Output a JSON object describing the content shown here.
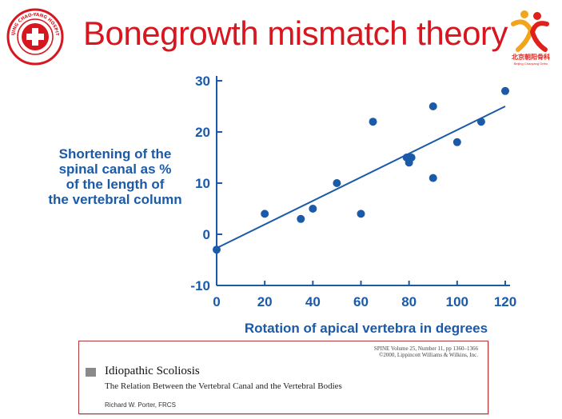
{
  "header": {
    "title": "Bonegrowth mismatch theory",
    "left_logo_text": "BEIJING CHAO-YANG HOSPITAL",
    "right_logo_text": "北京朝阳骨科",
    "right_logo_subtext": "Beijing Chaoyang Ortho"
  },
  "chart_data": {
    "type": "scatter",
    "title": "",
    "xlabel": "Rotation of apical vertebra in degrees",
    "ylabel_lines": [
      "Shortening of the",
      "spinal canal as %",
      "of the length of",
      "the vertebral column"
    ],
    "xlim": [
      0,
      120
    ],
    "ylim": [
      -10,
      30
    ],
    "xticks": [
      0,
      20,
      40,
      60,
      80,
      100,
      120
    ],
    "yticks": [
      -10,
      0,
      10,
      20,
      30
    ],
    "grid": false,
    "color": "#1a5aa8",
    "points": [
      {
        "x": 0,
        "y": -3
      },
      {
        "x": 20,
        "y": 4
      },
      {
        "x": 35,
        "y": 3
      },
      {
        "x": 40,
        "y": 5
      },
      {
        "x": 50,
        "y": 10
      },
      {
        "x": 60,
        "y": 4
      },
      {
        "x": 65,
        "y": 22
      },
      {
        "x": 79,
        "y": 15
      },
      {
        "x": 80,
        "y": 14
      },
      {
        "x": 81,
        "y": 15
      },
      {
        "x": 90,
        "y": 25
      },
      {
        "x": 90,
        "y": 11
      },
      {
        "x": 100,
        "y": 18
      },
      {
        "x": 110,
        "y": 22
      },
      {
        "x": 120,
        "y": 28
      }
    ],
    "trendline": {
      "x1": 0,
      "y1": -2.7,
      "x2": 120,
      "y2": 25
    }
  },
  "reference": {
    "journal_line1": "SPINE Volume 25, Number 11, pp 1360–1366",
    "journal_line2": "©2000, Lippincott Williams & Wilkins, Inc.",
    "title": "Idiopathic Scoliosis",
    "subtitle": "The Relation Between the Vertebral Canal and the Vertebral Bodies",
    "author": "Richard W. Porter, FRCS"
  }
}
